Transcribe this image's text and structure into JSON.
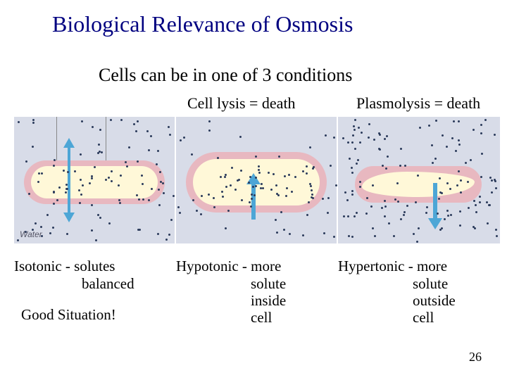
{
  "title": "Biological Relevance of Osmosis",
  "subtitle": "Cells can be in one of 3 conditions",
  "top_labels": {
    "lysis": "Cell lysis = death",
    "plasmolysis": "Plasmolysis = death"
  },
  "panels": {
    "background_color": "#d8dce8",
    "cell_membrane_color": "#e8b8c0",
    "cell_interior_color": "#fff8d8",
    "dot_color": "#2a3a5a",
    "arrow_color": "#4da6d6",
    "water_label": "Water"
  },
  "captions": {
    "isotonic": {
      "line1": "Isotonic - solutes",
      "line2": "balanced",
      "good": "Good Situation!"
    },
    "hypotonic": {
      "line1": "Hypotonic - more",
      "line2": "solute",
      "line3": "inside",
      "line4": "cell"
    },
    "hypertonic": {
      "line1": "Hypertonic - more",
      "line2": "solute",
      "line3": "outside",
      "line4": "cell"
    }
  },
  "page_number": "26",
  "colors": {
    "title_color": "#000080",
    "text_color": "#000000"
  },
  "fonts": {
    "title_size": 32,
    "subtitle_size": 26,
    "label_size": 22,
    "caption_size": 21
  }
}
